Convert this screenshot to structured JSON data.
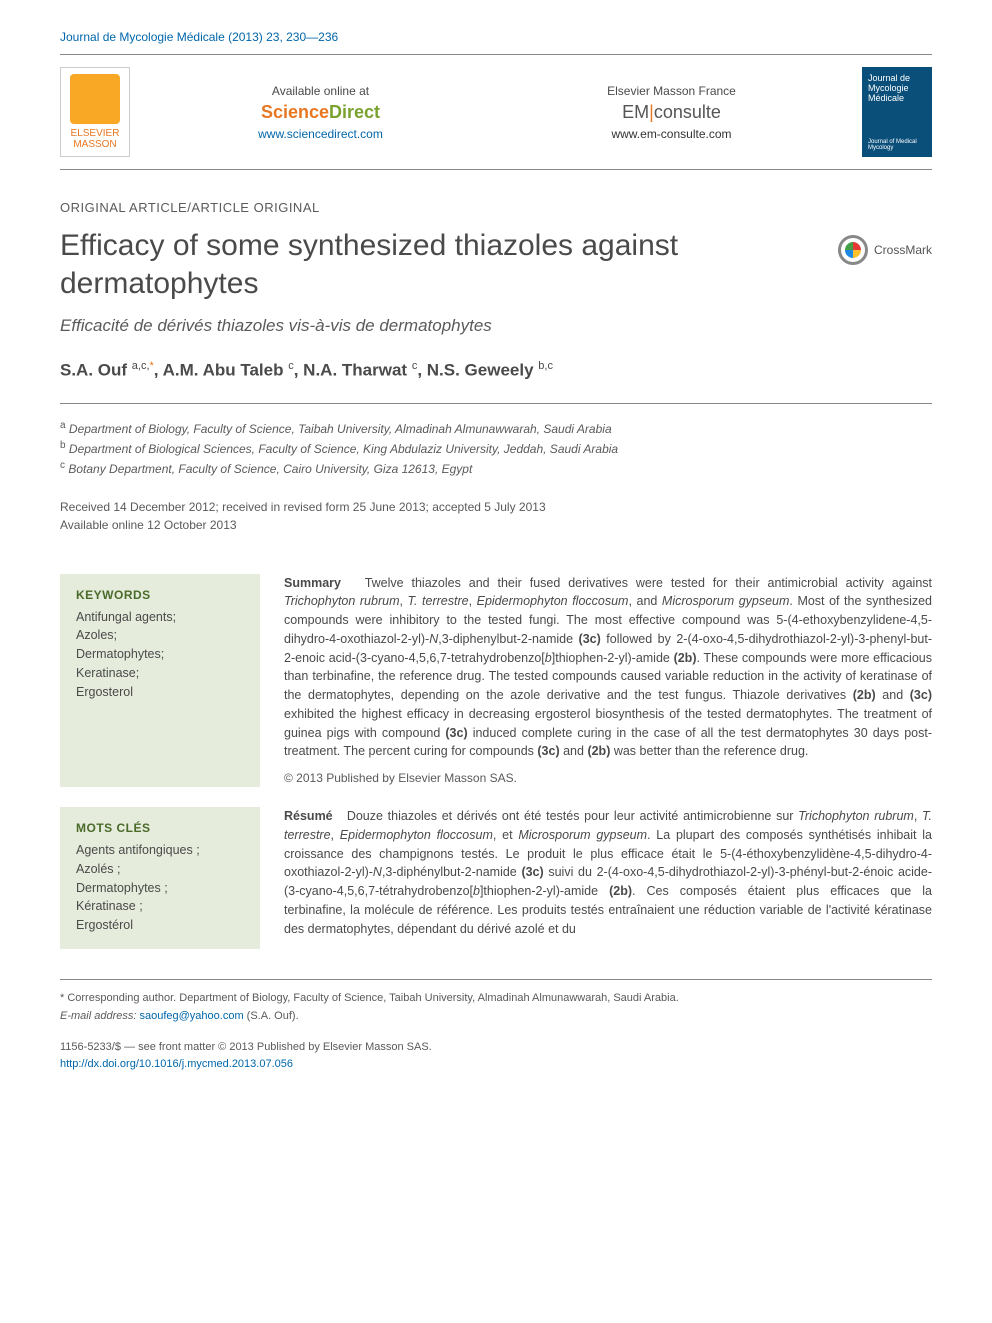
{
  "journal_ref": "Journal de Mycologie Médicale (2013) 23, 230—236",
  "topbar": {
    "elsevier": {
      "line1": "ELSEVIER",
      "line2": "MASSON"
    },
    "avail": {
      "label": "Available online at",
      "brand_a": "Science",
      "brand_b": "Direct",
      "url": "www.sciencedirect.com"
    },
    "em": {
      "label": "Elsevier Masson France",
      "brand_a": "EM",
      "brand_b": "consulte",
      "url": "www.em-consulte.com"
    },
    "cover": {
      "line1": "Journal de",
      "line2": "Mycologie",
      "line3": "Médicale",
      "line4": "Journal of Medical Mycology"
    }
  },
  "article_type": "ORIGINAL ARTICLE/ARTICLE ORIGINAL",
  "title": "Efficacy of some synthesized thiazoles against dermatophytes",
  "crossmark": "CrossMark",
  "subtitle": "Efficacité de dérivés thiazoles vis-à-vis de dermatophytes",
  "authors_html": "S.A. Ouf <sup>a,c,</sup><sup class=\"corr\">*</sup>, A.M. Abu Taleb <sup>c</sup>, N.A. Tharwat <sup>c</sup>, N.S. Geweely <sup>b,c</sup>",
  "affiliations": [
    {
      "sup": "a",
      "text": "Department of Biology, Faculty of Science, Taibah University, Almadinah Almunawwarah, Saudi Arabia"
    },
    {
      "sup": "b",
      "text": "Department of Biological Sciences, Faculty of Science, King Abdulaziz University, Jeddah, Saudi Arabia"
    },
    {
      "sup": "c",
      "text": "Botany Department, Faculty of Science, Cairo University, Giza 12613, Egypt"
    }
  ],
  "dates": {
    "line1": "Received 14 December 2012; received in revised form 25 June 2013; accepted 5 July 2013",
    "line2": "Available online 12 October 2013"
  },
  "keywords_en": {
    "hdr": "KEYWORDS",
    "body": "Antifungal agents;\nAzoles;\nDermatophytes;\nKeratinase;\nErgosterol"
  },
  "summary_en": "Twelve thiazoles and their fused derivatives were tested for their antimicrobial activity against <i>Trichophyton rubrum</i>, <i>T. terrestre</i>, <i>Epidermophyton floccosum</i>, and <i>Microsporum gypseum</i>. Most of the synthesized compounds were inhibitory to the tested fungi. The most effective compound was 5-(4-ethoxybenzylidene-4,5-dihydro-4-oxothiazol-2-yl)-<i>N</i>,3-diphenylbut-2-namide <b>(3c)</b> followed by 2-(4-oxo-4,5-dihydrothiazol-2-yl)-3-phenyl-but-2-enoic acid-(3-cyano-4,5,6,7-tetrahydrobenzo[<i>b</i>]thiophen-2-yl)-amide <b>(2b)</b>. These compounds were more efficacious than terbinafine, the reference drug. The tested compounds caused variable reduction in the activity of keratinase of the dermatophytes, depending on the azole derivative and the test fungus. Thiazole derivatives <b>(2b)</b> and <b>(3c)</b> exhibited the highest efficacy in decreasing ergosterol biosynthesis of the tested dermatophytes. The treatment of guinea pigs with compound <b>(3c)</b> induced complete curing in the case of all the test dermatophytes 30 days post-treatment. The percent curing for compounds <b>(3c)</b> and <b>(2b)</b> was better than the reference drug.",
  "copyright_en": "© 2013 Published by Elsevier Masson SAS.",
  "keywords_fr": {
    "hdr": "MOTS CLÉS",
    "body": "Agents antifongiques ;\nAzolés ;\nDermatophytes ;\nKératinase ;\nErgostérol"
  },
  "summary_fr": "Douze thiazoles et dérivés ont été testés pour leur activité antimicrobienne sur <i>Trichophyton rubrum</i>, <i>T. terrestre</i>, <i>Epidermophyton floccosum</i>, et <i>Microsporum gypseum</i>. La plupart des composés synthétisés inhibait la croissance des champignons testés. Le produit le plus efficace était le 5-(4-éthoxybenzylidène-4,5-dihydro-4-oxothiazol-2-yl)-<i>N</i>,3-diphénylbut-2-namide <b>(3c)</b> suivi du 2-(4-oxo-4,5-dihydrothiazol-2-yl)-3-phényl-but-2-énoic acide-(3-cyano-4,5,6,7-tétrahydrobenzo[<i>b</i>]thiophen-2-yl)-amide <b>(2b)</b>. Ces composés étaient plus efficaces que la terbinafine, la molécule de référence. Les produits testés entraînaient une réduction variable de l'activité kératinase des dermatophytes, dépendant du dérivé azolé et du",
  "footer": {
    "corr": "* Corresponding author. Department of Biology, Faculty of Science, Taibah University, Almadinah Almunawwarah, Saudi Arabia.",
    "email_label": "E-mail address:",
    "email": "saoufeg@yahoo.com",
    "email_who": "(S.A. Ouf).",
    "issn": "1156-5233/$ — see front matter © 2013 Published by Elsevier Masson SAS.",
    "doi": "http://dx.doi.org/10.1016/j.mycmed.2013.07.056"
  },
  "labels": {
    "summary": "Summary",
    "resume": "Résumé"
  },
  "colors": {
    "link": "#0066aa",
    "orange": "#e87722",
    "green": "#7aa22f",
    "kw_bg": "#e6ecdc",
    "kw_hdr": "#4a6a2a",
    "text": "#4a4a4a"
  }
}
